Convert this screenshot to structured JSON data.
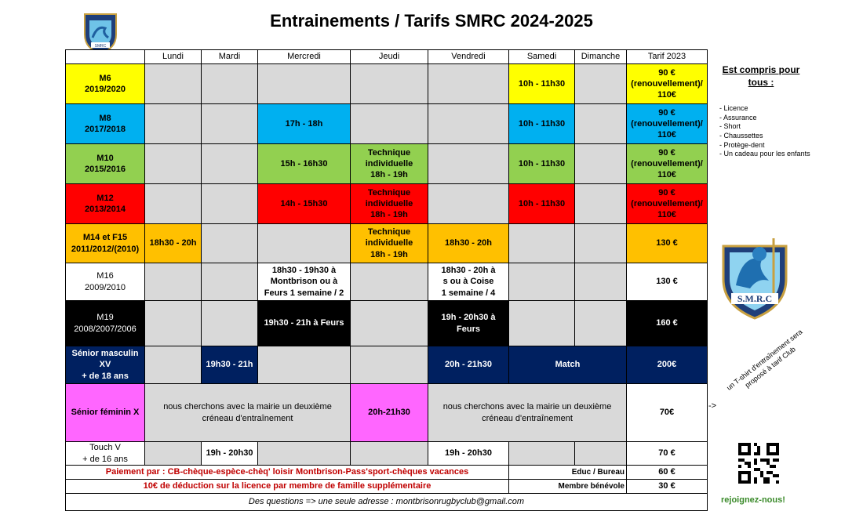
{
  "title": "Entrainements / Tarifs SMRC 2024-2025",
  "logo_text": "SMRC",
  "header": [
    "",
    "Lundi",
    "Mardi",
    "Mercredi",
    "Jeudi",
    "Vendredi",
    "Samedi",
    "Dimanche",
    "Tarif 2023"
  ],
  "rows": [
    {
      "name": "M6",
      "years": "2019/2020",
      "samedi": "10h - 11h30",
      "tarif": [
        "90 €",
        "(renouvellement)/",
        "110€"
      ]
    },
    {
      "name": "M8",
      "years": "2017/2018",
      "mercredi": "17h - 18h",
      "samedi": "10h - 11h30",
      "tarif": [
        "90 €",
        "(renouvellement)/",
        "110€"
      ]
    },
    {
      "name": "M10",
      "years": "2015/2016",
      "mercredi": "15h - 16h30",
      "jeudi": [
        "Technique",
        "individuelle",
        "18h - 19h"
      ],
      "samedi": "10h - 11h30",
      "tarif": [
        "90 €",
        "(renouvellement)/",
        "110€"
      ]
    },
    {
      "name": "M12",
      "years": "2013/2014",
      "mercredi": "14h - 15h30",
      "jeudi": [
        "Technique",
        "individuelle",
        "18h - 19h"
      ],
      "samedi": "10h - 11h30",
      "tarif": [
        "90 €",
        "(renouvellement)/",
        "110€"
      ]
    },
    {
      "name": "M14 et F15",
      "years": "2011/2012/(2010)",
      "lundi": "18h30 - 20h",
      "jeudi": [
        "Technique",
        "individuelle",
        "18h - 19h"
      ],
      "vendredi": "18h30 - 20h",
      "tarif": "130 €"
    },
    {
      "name": "M16",
      "years": "2009/2010",
      "mercredi": [
        "18h30 - 19h30 à",
        "Montbrison ou à",
        "Feurs 1 semaine / 2"
      ],
      "vendredi": [
        "18h30 - 20h à",
        "s ou à Coise",
        "1 semaine / 4"
      ],
      "tarif": "130 €"
    },
    {
      "name": "M19",
      "years": "2008/2007/2006",
      "mercredi": "19h30 - 21h à Feurs",
      "vendredi": [
        "19h - 20h30 à",
        "Feurs"
      ],
      "tarif": "160 €"
    },
    {
      "name": "Sénior masculin",
      "years": [
        "XV",
        "+ de 18 ans"
      ],
      "mardi": "19h30 - 21h",
      "vendredi": "20h - 21h30",
      "weekend": "Match",
      "tarif": "200€"
    },
    {
      "name": "Sénior féminin X",
      "note1": [
        "nous cherchons avec la mairie un deuxième",
        "créneau d'entraînement"
      ],
      "jeudi": "20h-21h30",
      "note2": [
        "nous cherchons avec la mairie un deuxième",
        "créneau d'entraînement"
      ],
      "tarif": "70€"
    },
    {
      "name": "Touch V",
      "years": "+ de 16 ans",
      "mardi": "19h - 20h30",
      "vendredi": "19h - 20h30",
      "tarif": "70 €"
    }
  ],
  "footer": {
    "payment": "Paiement par : CB-chèque-espèce-chèq' loisir Montbrison-Pass'sport-chèques vacances",
    "discount": "10€ de déduction sur la licence par membre de famille supplémentaire",
    "questions": "Des questions => une seule adresse : montbrisonrugbyclub@gmail.com",
    "educ_label": "Educ / Bureau",
    "educ_price": "60 €",
    "member_label": "Membre bénévole",
    "member_price": "30 €"
  },
  "side": {
    "title": "Est compris pour tous :",
    "items": [
      "- Licence",
      "- Assurance",
      "- Short",
      "- Chaussettes",
      "- Protège-dent",
      "- Un cadeau pour les enfants"
    ],
    "logo_text": "S.M.R.C",
    "arrow": "->",
    "tshirt": "un T-shirt d'entraînement sera proposé à tarif Club",
    "join": "rejoignez-nous!"
  },
  "colors": {
    "m6": "#ffff00",
    "m8": "#00b0f0",
    "m10": "#92d050",
    "m12": "#ff0000",
    "m14": "#ffc000",
    "m19": "#000000",
    "senior": "#002060",
    "feminin": "#ff66ff",
    "grey": "#d9d9d9",
    "payment_text": "#c00000",
    "join_text": "#3a8a2a"
  }
}
